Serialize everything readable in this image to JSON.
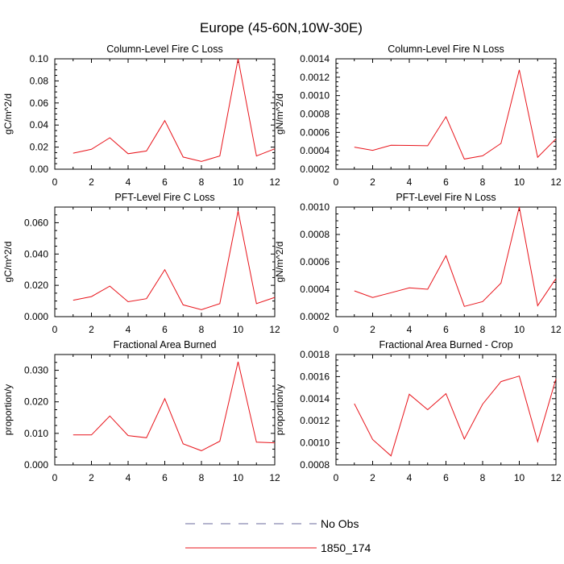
{
  "title": "Europe (45-60N,10W-30E)",
  "chart_data": [
    {
      "type": "line",
      "title": "Column-Level Fire C Loss",
      "xlabel": "",
      "ylabel": "gC/m^2/d",
      "xlim": [
        0,
        12
      ],
      "ylim": [
        0,
        0.1
      ],
      "xticks": [
        0,
        2,
        4,
        6,
        8,
        10,
        12
      ],
      "xtick_labels": [
        "0",
        "2",
        "4",
        "6",
        "8",
        "10",
        "12"
      ],
      "yticks": [
        0,
        0.02,
        0.04,
        0.06,
        0.08,
        0.1
      ],
      "ytick_labels": [
        "0.00",
        "0.02",
        "0.04",
        "0.06",
        "0.08",
        "0.10"
      ],
      "x": [
        1,
        2,
        3,
        4,
        5,
        6,
        7,
        8,
        9,
        10,
        11,
        12
      ],
      "series": [
        {
          "name": "1850_174",
          "color": "#e8141b",
          "values": [
            0.0145,
            0.018,
            0.0285,
            0.014,
            0.0165,
            0.044,
            0.011,
            0.007,
            0.012,
            0.1,
            0.012,
            0.0185
          ]
        }
      ]
    },
    {
      "type": "line",
      "title": "Column-Level Fire N Loss",
      "xlabel": "",
      "ylabel": "gN/m^2/d",
      "xlim": [
        0,
        12
      ],
      "ylim": [
        0.0002,
        0.0014
      ],
      "xticks": [
        0,
        2,
        4,
        6,
        8,
        10,
        12
      ],
      "xtick_labels": [
        "0",
        "2",
        "4",
        "6",
        "8",
        "10",
        "12"
      ],
      "yticks": [
        0.0002,
        0.0004,
        0.0006,
        0.0008,
        0.001,
        0.0012,
        0.0014
      ],
      "ytick_labels": [
        "0.0002",
        "0.0004",
        "0.0006",
        "0.0008",
        "0.0010",
        "0.0012",
        "0.0014"
      ],
      "x": [
        1,
        2,
        3,
        4,
        5,
        6,
        7,
        8,
        9,
        10,
        11,
        12
      ],
      "series": [
        {
          "name": "1850_174",
          "color": "#e8141b",
          "values": [
            0.00044,
            0.000405,
            0.00046,
            0.000458,
            0.000455,
            0.00077,
            0.00031,
            0.000345,
            0.00048,
            0.00128,
            0.00033,
            0.00053
          ]
        }
      ]
    },
    {
      "type": "line",
      "title": "PFT-Level Fire C Loss",
      "xlabel": "",
      "ylabel": "gC/m^2/d",
      "xlim": [
        0,
        12
      ],
      "ylim": [
        0,
        0.07
      ],
      "xticks": [
        0,
        2,
        4,
        6,
        8,
        10,
        12
      ],
      "xtick_labels": [
        "0",
        "2",
        "4",
        "6",
        "8",
        "10",
        "12"
      ],
      "yticks": [
        0,
        0.02,
        0.04,
        0.06
      ],
      "ytick_labels": [
        "0.000",
        "0.020",
        "0.040",
        "0.060"
      ],
      "x": [
        1,
        2,
        3,
        4,
        5,
        6,
        7,
        8,
        9,
        10,
        11,
        12
      ],
      "series": [
        {
          "name": "1850_174",
          "color": "#e8141b",
          "values": [
            0.0105,
            0.0128,
            0.0195,
            0.0095,
            0.0115,
            0.03,
            0.0075,
            0.0045,
            0.0083,
            0.0675,
            0.0083,
            0.0123
          ]
        }
      ]
    },
    {
      "type": "line",
      "title": "PFT-Level Fire N Loss",
      "xlabel": "",
      "ylabel": "gN/m^2/d",
      "xlim": [
        0,
        12
      ],
      "ylim": [
        0.0002,
        0.001
      ],
      "xticks": [
        0,
        2,
        4,
        6,
        8,
        10,
        12
      ],
      "xtick_labels": [
        "0",
        "2",
        "4",
        "6",
        "8",
        "10",
        "12"
      ],
      "yticks": [
        0.0002,
        0.0004,
        0.0006,
        0.0008,
        0.001
      ],
      "ytick_labels": [
        "0.0002",
        "0.0004",
        "0.0006",
        "0.0008",
        "0.0010"
      ],
      "x": [
        1,
        2,
        3,
        4,
        5,
        6,
        7,
        8,
        9,
        10,
        11,
        12
      ],
      "series": [
        {
          "name": "1850_174",
          "color": "#e8141b",
          "values": [
            0.000388,
            0.00034,
            0.000375,
            0.00041,
            0.0004,
            0.000645,
            0.000275,
            0.00031,
            0.000445,
            0.001,
            0.00028,
            0.000478
          ]
        }
      ]
    },
    {
      "type": "line",
      "title": "Fractional Area Burned",
      "xlabel": "",
      "ylabel": "proportion/y",
      "xlim": [
        0,
        12
      ],
      "ylim": [
        0,
        0.035
      ],
      "xticks": [
        0,
        2,
        4,
        6,
        8,
        10,
        12
      ],
      "xtick_labels": [
        "0",
        "2",
        "4",
        "6",
        "8",
        "10",
        "12"
      ],
      "yticks": [
        0,
        0.01,
        0.02,
        0.03
      ],
      "ytick_labels": [
        "0.000",
        "0.010",
        "0.020",
        "0.030"
      ],
      "x": [
        1,
        2,
        3,
        4,
        5,
        6,
        7,
        8,
        9,
        10,
        11,
        12
      ],
      "series": [
        {
          "name": "1850_174",
          "color": "#e8141b",
          "values": [
            0.0095,
            0.0095,
            0.0155,
            0.0093,
            0.0086,
            0.021,
            0.0067,
            0.0045,
            0.0075,
            0.0327,
            0.0072,
            0.007
          ]
        }
      ]
    },
    {
      "type": "line",
      "title": "Fractional Area Burned - Crop",
      "xlabel": "",
      "ylabel": "proportion/y",
      "xlim": [
        0,
        12
      ],
      "ylim": [
        0.0008,
        0.0018
      ],
      "xticks": [
        0,
        2,
        4,
        6,
        8,
        10,
        12
      ],
      "xtick_labels": [
        "0",
        "2",
        "4",
        "6",
        "8",
        "10",
        "12"
      ],
      "yticks": [
        0.0008,
        0.001,
        0.0012,
        0.0014,
        0.0016,
        0.0018
      ],
      "ytick_labels": [
        "0.0008",
        "0.0010",
        "0.0012",
        "0.0014",
        "0.0016",
        "0.0018"
      ],
      "x": [
        1,
        2,
        3,
        4,
        5,
        6,
        7,
        8,
        9,
        10,
        11,
        12
      ],
      "series": [
        {
          "name": "1850_174",
          "color": "#e8141b",
          "values": [
            0.001355,
            0.00103,
            0.000882,
            0.00144,
            0.0013,
            0.001445,
            0.001035,
            0.00135,
            0.001555,
            0.001605,
            0.00101,
            0.00158
          ]
        }
      ]
    }
  ],
  "legend": {
    "items": [
      {
        "label": "No Obs",
        "color": "#6b6b9e",
        "style": "dashed"
      },
      {
        "label": "1850_174",
        "color": "#e8141b",
        "style": "solid"
      }
    ]
  }
}
